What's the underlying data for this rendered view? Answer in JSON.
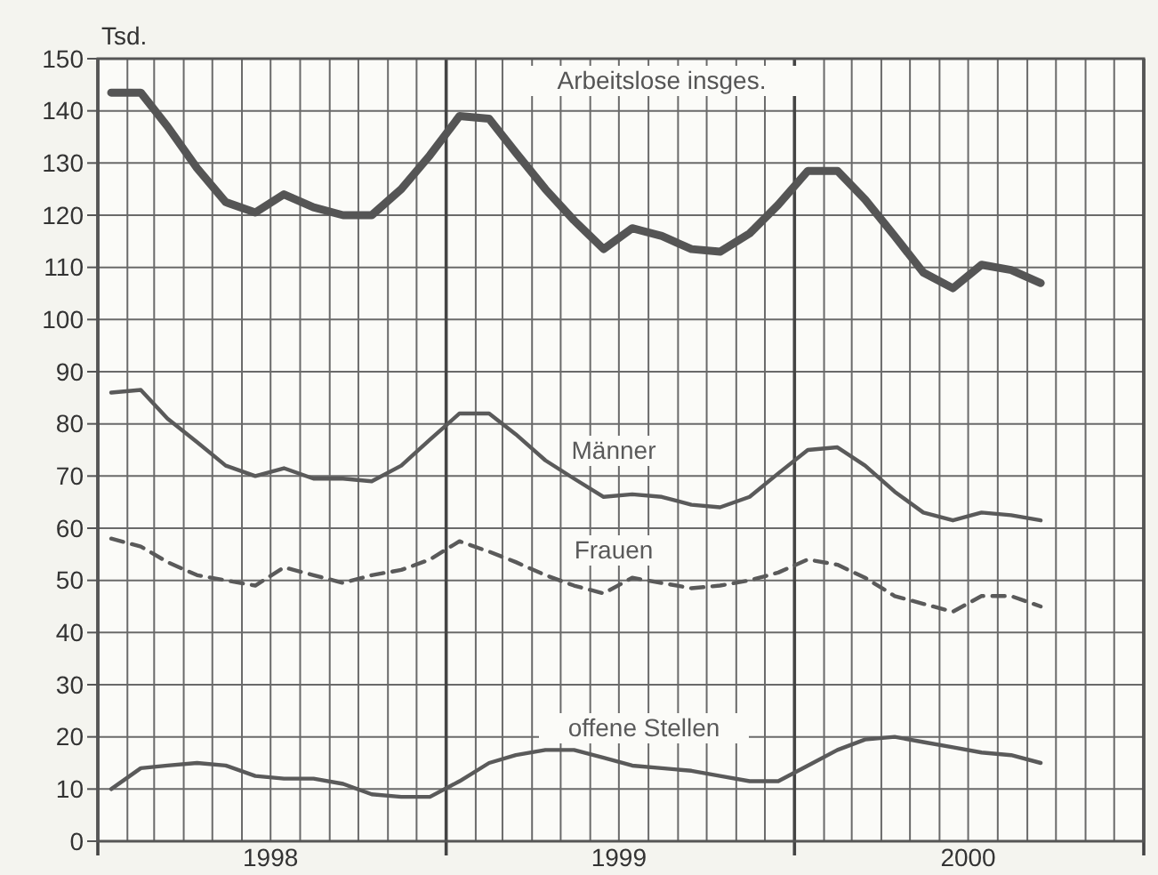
{
  "chart_data": {
    "type": "line",
    "ylabel": "Tsd.",
    "x": [
      "1998-01-15",
      "1998-02-15",
      "1998-03-15",
      "1998-04-15",
      "1998-05-15",
      "1998-06-15",
      "1998-07-15",
      "1998-08-15",
      "1998-09-15",
      "1998-10-15",
      "1998-11-15",
      "1998-12-15",
      "1999-01-15",
      "1999-02-15",
      "1999-03-15",
      "1999-04-15",
      "1999-05-15",
      "1999-06-15",
      "1999-07-15",
      "1999-08-15",
      "1999-09-15",
      "1999-10-15",
      "1999-11-15",
      "1999-12-15",
      "2000-01-15",
      "2000-02-15",
      "2000-03-15",
      "2000-04-15",
      "2000-05-15",
      "2000-06-15",
      "2000-07-15",
      "2000-08-15",
      "2000-09-15"
    ],
    "series": [
      {
        "name": "Arbeitslose insges.",
        "color": "#555555",
        "line_style": "solid",
        "values": [
          143.5,
          143.5,
          137,
          129,
          122.5,
          120.5,
          124,
          121.5,
          120,
          120,
          125,
          131.5,
          139,
          138.5,
          132,
          125,
          119,
          113.5,
          117.5,
          116,
          113.5,
          113,
          116.5,
          122,
          128.5,
          128.5,
          123,
          116,
          109,
          106,
          110.5,
          109.5,
          107
        ]
      },
      {
        "name": "Männer",
        "color": "#5a5a5a",
        "line_style": "solid",
        "values": [
          86,
          86.5,
          81,
          76.5,
          72,
          70,
          71.5,
          69.5,
          69.5,
          69,
          72,
          77,
          82,
          82,
          78,
          73,
          69.5,
          66,
          66.5,
          66,
          64.5,
          64,
          66,
          70.5,
          75,
          75.5,
          72,
          67,
          63,
          61.5,
          63,
          62.5,
          61.5
        ]
      },
      {
        "name": "Frauen",
        "color": "#5a5a5a",
        "line_style": "dashed",
        "values": [
          58,
          56.5,
          53.5,
          51,
          50,
          49,
          52.5,
          51,
          49.5,
          51,
          52,
          54,
          57.5,
          55.5,
          53.5,
          51,
          49,
          47.5,
          50.5,
          49.5,
          48.5,
          49,
          50,
          51.5,
          54,
          53,
          50.5,
          47,
          45.5,
          44,
          47,
          47,
          45
        ]
      },
      {
        "name": "offene Stellen",
        "color": "#5a5a5a",
        "line_style": "solid",
        "values": [
          10,
          14,
          14.5,
          15,
          14.5,
          12.5,
          12,
          12,
          11,
          9,
          8.5,
          8.5,
          11.5,
          15,
          16.5,
          17.5,
          17.5,
          16,
          14.5,
          14,
          13.5,
          12.5,
          11.5,
          11.5,
          14.5,
          17.5,
          19.5,
          20,
          19,
          18,
          17,
          16.5,
          15
        ]
      }
    ],
    "xlim": [
      "1998-01-01",
      "2001-01-01"
    ],
    "xticks": [
      {
        "value": "1998-01-01",
        "label": null
      },
      {
        "value": "1998-02-01",
        "label": null
      },
      {
        "value": "1998-03-01",
        "label": null
      },
      {
        "value": "1998-04-01",
        "label": null
      },
      {
        "value": "1998-05-01",
        "label": null
      },
      {
        "value": "1998-06-01",
        "label": null
      },
      {
        "value": "1998-07-01",
        "label": "1998"
      },
      {
        "value": "1998-08-01",
        "label": null
      },
      {
        "value": "1998-09-01",
        "label": null
      },
      {
        "value": "1998-10-01",
        "label": null
      },
      {
        "value": "1998-11-01",
        "label": null
      },
      {
        "value": "1998-12-01",
        "label": null
      },
      {
        "value": "1999-01-01",
        "label": null
      },
      {
        "value": "1999-02-01",
        "label": null
      },
      {
        "value": "1999-03-01",
        "label": null
      },
      {
        "value": "1999-04-01",
        "label": null
      },
      {
        "value": "1999-05-01",
        "label": null
      },
      {
        "value": "1999-06-01",
        "label": null
      },
      {
        "value": "1999-07-01",
        "label": "1999"
      },
      {
        "value": "1999-08-01",
        "label": null
      },
      {
        "value": "1999-09-01",
        "label": null
      },
      {
        "value": "1999-10-01",
        "label": null
      },
      {
        "value": "1999-11-01",
        "label": null
      },
      {
        "value": "1999-12-01",
        "label": null
      },
      {
        "value": "2000-01-01",
        "label": null
      },
      {
        "value": "2000-02-01",
        "label": null
      },
      {
        "value": "2000-03-01",
        "label": null
      },
      {
        "value": "2000-04-01",
        "label": null
      },
      {
        "value": "2000-05-01",
        "label": null
      },
      {
        "value": "2000-06-01",
        "label": null
      },
      {
        "value": "2000-07-01",
        "label": "2000"
      },
      {
        "value": "2000-08-01",
        "label": null
      },
      {
        "value": "2000-09-01",
        "label": null
      },
      {
        "value": "2000-10-01",
        "label": null
      },
      {
        "value": "2000-11-01",
        "label": null
      },
      {
        "value": "2000-12-01",
        "label": null
      },
      {
        "value": "2001-01-01",
        "label": null
      }
    ],
    "ylim": [
      0,
      150
    ],
    "yticks": [
      0,
      10,
      20,
      30,
      40,
      50,
      60,
      70,
      80,
      90,
      100,
      110,
      120,
      130,
      140,
      150
    ],
    "grid": true,
    "marker": "none"
  }
}
